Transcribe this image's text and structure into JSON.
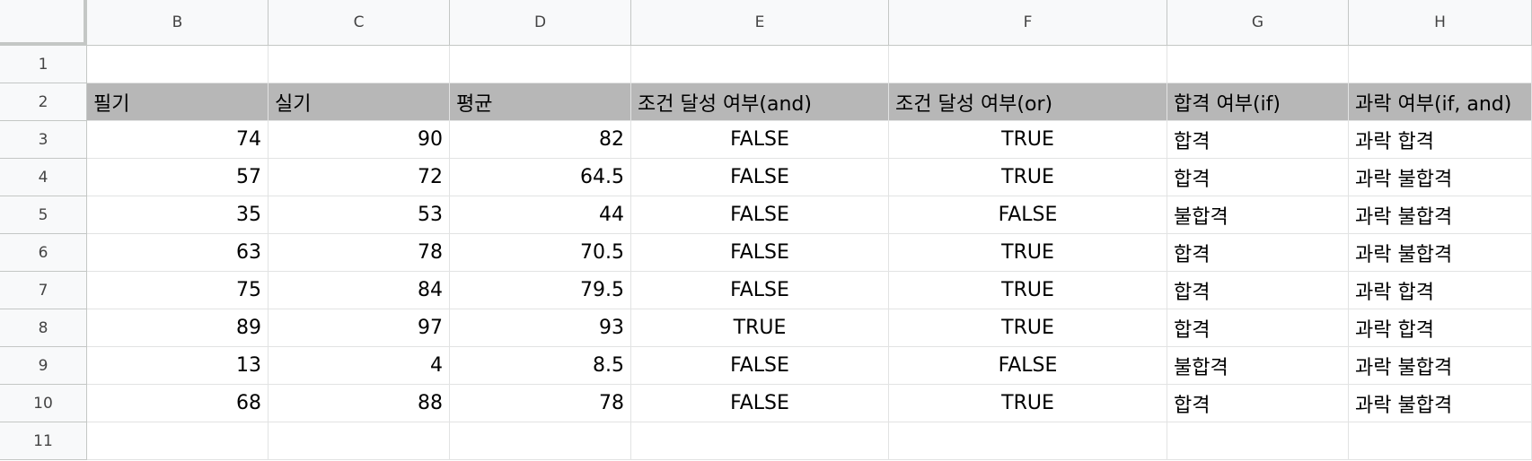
{
  "columns": [
    "B",
    "C",
    "D",
    "E",
    "F",
    "G",
    "H"
  ],
  "row_numbers": [
    1,
    2,
    3,
    4,
    5,
    6,
    7,
    8,
    9,
    10,
    11
  ],
  "table": {
    "header": [
      "필기",
      "실기",
      "평균",
      "조건 달성 여부(and)",
      "조건 달성 여부(or)",
      "합격 여부(if)",
      "과락 여부(if, and)"
    ],
    "rows": [
      [
        74,
        90,
        82,
        "FALSE",
        "TRUE",
        "합격",
        "과락 합격"
      ],
      [
        57,
        72,
        64.5,
        "FALSE",
        "TRUE",
        "합격",
        "과락 불합격"
      ],
      [
        35,
        53,
        44,
        "FALSE",
        "FALSE",
        "불합격",
        "과락 불합격"
      ],
      [
        63,
        78,
        70.5,
        "FALSE",
        "TRUE",
        "합격",
        "과락 불합격"
      ],
      [
        75,
        84,
        79.5,
        "FALSE",
        "TRUE",
        "합격",
        "과락 합격"
      ],
      [
        89,
        97,
        93,
        "TRUE",
        "TRUE",
        "합격",
        "과락 합격"
      ],
      [
        13,
        4,
        8.5,
        "FALSE",
        "FALSE",
        "불합격",
        "과락 불합격"
      ],
      [
        68,
        88,
        78,
        "FALSE",
        "TRUE",
        "합격",
        "과락 불합격"
      ]
    ]
  }
}
